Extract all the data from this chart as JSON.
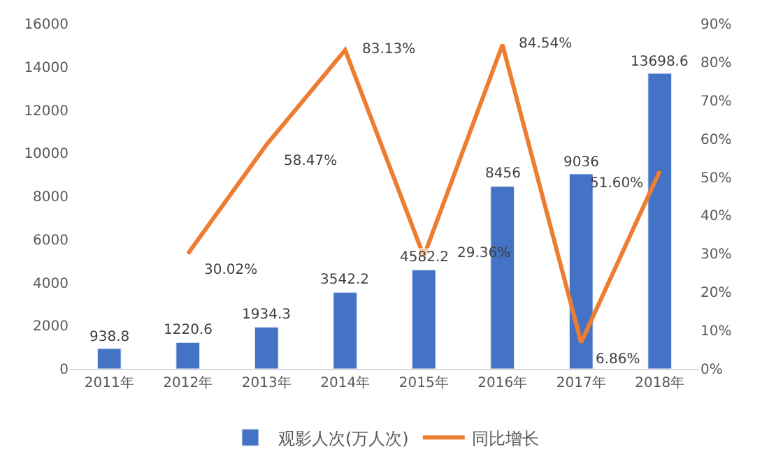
{
  "chart_data": {
    "type": "bar",
    "categories": [
      "2011年",
      "2012年",
      "2013年",
      "2014年",
      "2015年",
      "2016年",
      "2017年",
      "2018年"
    ],
    "series": [
      {
        "name": "观影人次(万人次)",
        "type": "bar",
        "color": "#4472c4",
        "values": [
          938.8,
          1220.6,
          1934.3,
          3542.2,
          4582.2,
          8456,
          9036,
          13698.6
        ],
        "value_labels": [
          "938.8",
          "1220.6",
          "1934.3",
          "3542.2",
          "4582.2",
          "8456",
          "9036",
          "13698.6"
        ]
      },
      {
        "name": "同比增长",
        "type": "line",
        "axis": "y2",
        "color": "#ed7d31",
        "values": [
          null,
          30.02,
          58.47,
          83.13,
          29.36,
          84.54,
          6.86,
          51.6
        ],
        "value_labels": [
          null,
          "30.02%",
          "58.47%",
          "83.13%",
          "29.36%",
          "84.54%",
          "6.86%",
          "51.60%"
        ]
      }
    ],
    "ylim": [
      0,
      16000
    ],
    "yticks": [
      0,
      2000,
      4000,
      6000,
      8000,
      10000,
      12000,
      14000,
      16000
    ],
    "y2lim": [
      0,
      90
    ],
    "y2ticks": [
      {
        "value": 0,
        "label": "0%"
      },
      {
        "value": 10,
        "label": "10%"
      },
      {
        "value": 20,
        "label": "20%"
      },
      {
        "value": 30,
        "label": "30%"
      },
      {
        "value": 40,
        "label": "40%"
      },
      {
        "value": 50,
        "label": "50%"
      },
      {
        "value": 60,
        "label": "60%"
      },
      {
        "value": 70,
        "label": "70%"
      },
      {
        "value": 80,
        "label": "80%"
      },
      {
        "value": 90,
        "label": "90%"
      }
    ],
    "legend": "bottom",
    "marker": "none"
  }
}
